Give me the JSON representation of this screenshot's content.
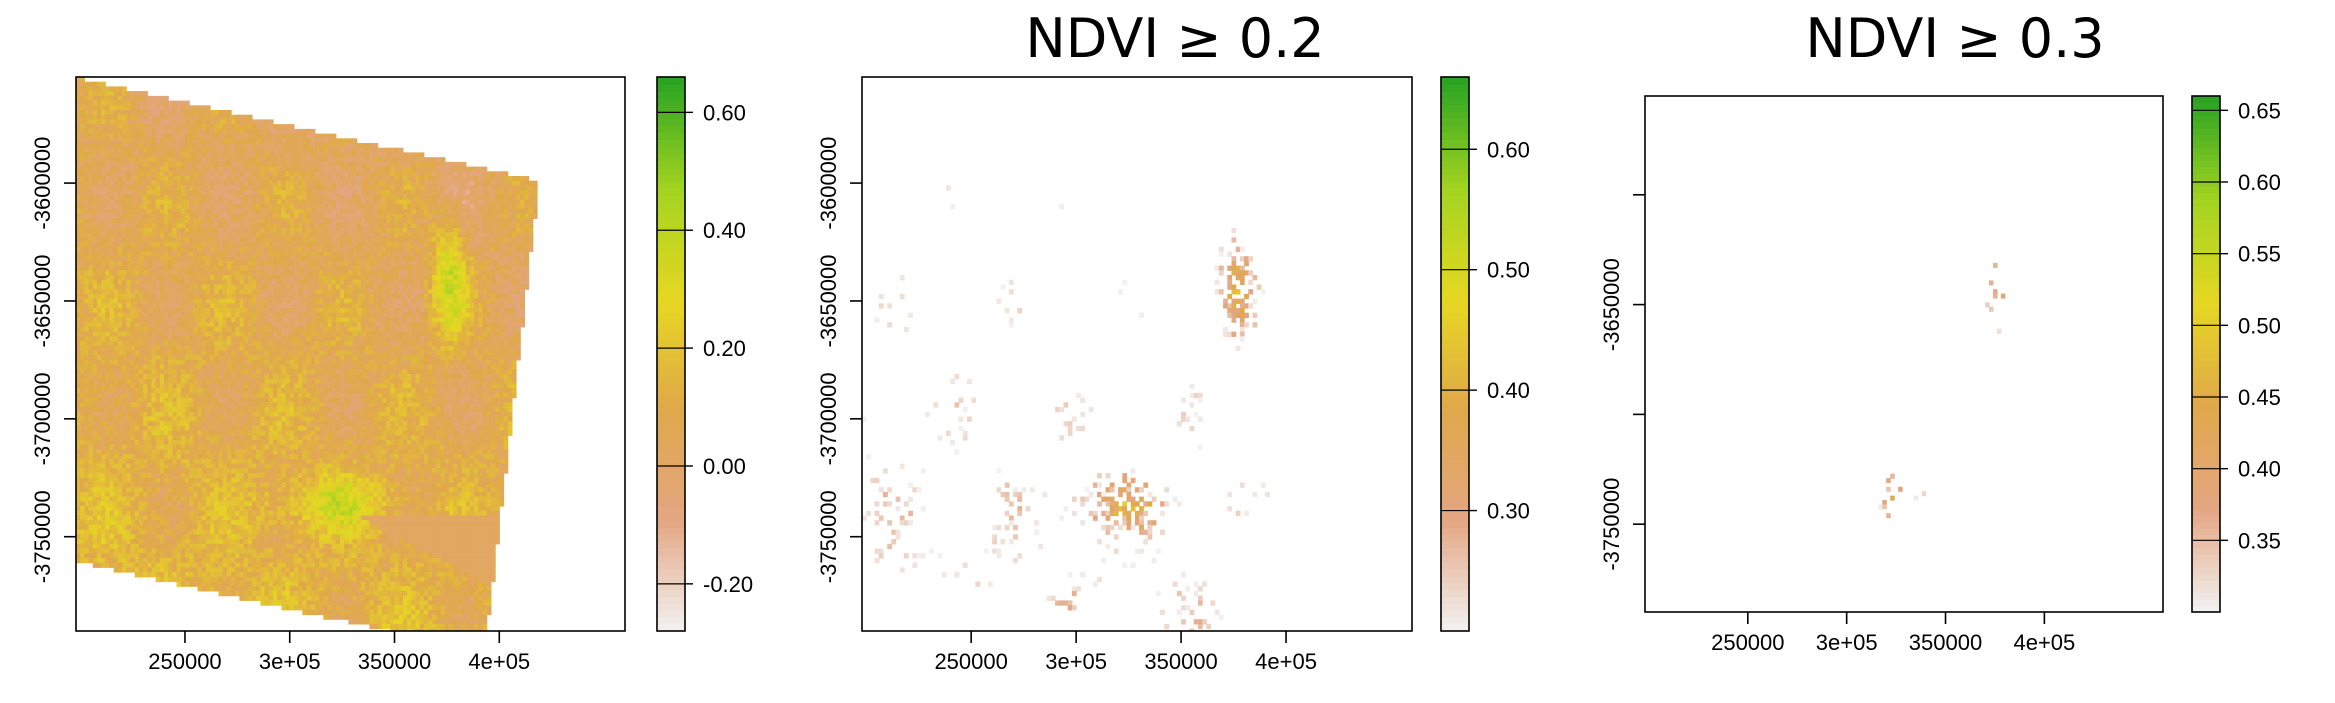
{
  "chart_data": [
    {
      "type": "heatmap",
      "title": "",
      "xlabel": "",
      "ylabel": "",
      "x_ticks": [
        {
          "value": 250000,
          "label": "250000"
        },
        {
          "value": 300000,
          "label": "3e+05"
        },
        {
          "value": 350000,
          "label": "350000"
        },
        {
          "value": 400000,
          "label": "4e+05"
        }
      ],
      "y_ticks": [
        {
          "value": -3600000,
          "label": "-3600000"
        },
        {
          "value": -3650000,
          "label": "-3650000"
        },
        {
          "value": -3700000,
          "label": "-3700000"
        },
        {
          "value": -3750000,
          "label": "-3750000"
        }
      ],
      "xlim": [
        198000,
        460000
      ],
      "ylim": [
        -3790000,
        -3555000
      ],
      "legend": {
        "position": "right",
        "range": [
          -0.28,
          0.66
        ],
        "ticks": [
          {
            "value": -0.2,
            "label": "-0.20"
          },
          {
            "value": 0.0,
            "label": "0.00"
          },
          {
            "value": 0.2,
            "label": "0.20"
          },
          {
            "value": 0.4,
            "label": "0.40"
          },
          {
            "value": 0.6,
            "label": "0.60"
          }
        ],
        "colors": [
          "#f2f2f2",
          "#e4a683",
          "#e0a84a",
          "#e6d722",
          "#a3d420",
          "#27a223"
        ]
      }
    },
    {
      "type": "heatmap",
      "title": "NDVI ≥ 0.2",
      "xlabel": "",
      "ylabel": "",
      "x_ticks": [
        {
          "value": 250000,
          "label": "250000"
        },
        {
          "value": 300000,
          "label": "3e+05"
        },
        {
          "value": 350000,
          "label": "350000"
        },
        {
          "value": 400000,
          "label": "4e+05"
        }
      ],
      "y_ticks": [
        {
          "value": -3600000,
          "label": "-3600000"
        },
        {
          "value": -3650000,
          "label": "-3650000"
        },
        {
          "value": -3700000,
          "label": "-3700000"
        },
        {
          "value": -3750000,
          "label": "-3750000"
        }
      ],
      "xlim": [
        198000,
        460000
      ],
      "ylim": [
        -3790000,
        -3555000
      ],
      "legend": {
        "position": "right",
        "range": [
          0.2,
          0.66
        ],
        "ticks": [
          {
            "value": 0.3,
            "label": "0.30"
          },
          {
            "value": 0.4,
            "label": "0.40"
          },
          {
            "value": 0.5,
            "label": "0.50"
          },
          {
            "value": 0.6,
            "label": "0.60"
          }
        ],
        "colors": [
          "#f2f2f2",
          "#e4a683",
          "#e0a84a",
          "#e6d722",
          "#a3d420",
          "#27a223"
        ]
      }
    },
    {
      "type": "heatmap",
      "title": "NDVI ≥ 0.3",
      "xlabel": "",
      "ylabel": "",
      "x_ticks": [
        {
          "value": 250000,
          "label": "250000"
        },
        {
          "value": 300000,
          "label": "3e+05"
        },
        {
          "value": 350000,
          "label": "350000"
        },
        {
          "value": 400000,
          "label": "4e+05"
        }
      ],
      "y_ticks": [
        {
          "value": -3600000,
          "label": ""
        },
        {
          "value": -3650000,
          "label": "-3650000"
        },
        {
          "value": -3700000,
          "label": ""
        },
        {
          "value": -3750000,
          "label": "-3750000"
        }
      ],
      "xlim": [
        198000,
        460000
      ],
      "ylim": [
        -3790000,
        -3555000
      ],
      "legend": {
        "position": "right",
        "range": [
          0.3,
          0.66
        ],
        "ticks": [
          {
            "value": 0.35,
            "label": "0.35"
          },
          {
            "value": 0.4,
            "label": "0.40"
          },
          {
            "value": 0.45,
            "label": "0.45"
          },
          {
            "value": 0.5,
            "label": "0.50"
          },
          {
            "value": 0.55,
            "label": "0.55"
          },
          {
            "value": 0.6,
            "label": "0.60"
          },
          {
            "value": 0.65,
            "label": "0.65"
          }
        ],
        "colors": [
          "#f2f2f2",
          "#e4a683",
          "#e0a84a",
          "#e6d722",
          "#a3d420",
          "#27a223"
        ]
      }
    }
  ]
}
